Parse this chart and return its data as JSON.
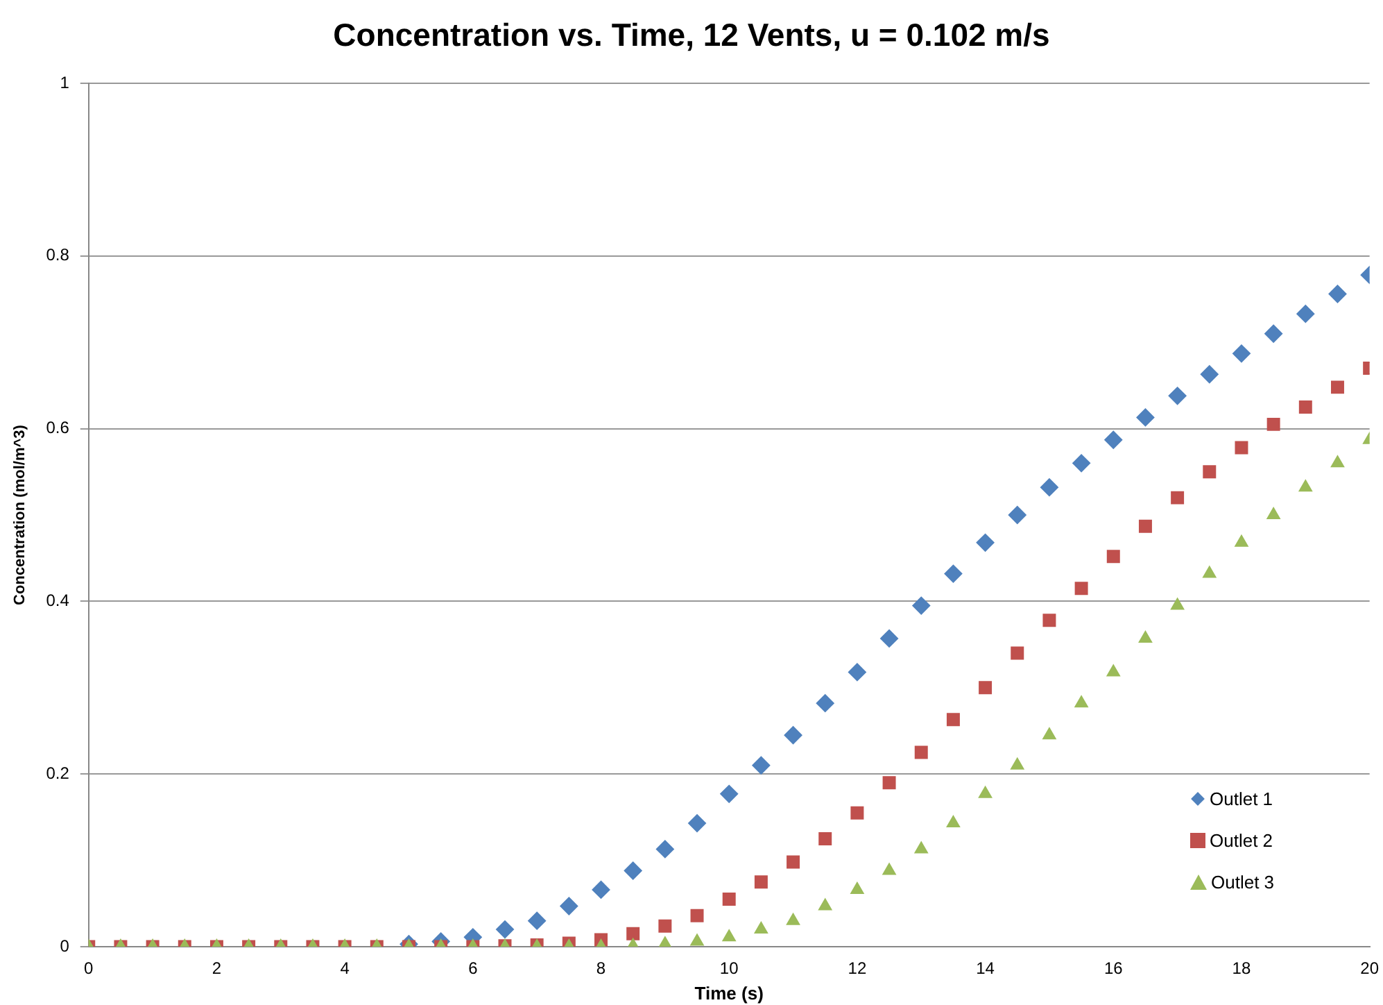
{
  "chart_data": {
    "type": "scatter",
    "title": "Concentration vs. Time, 12 Vents, u = 0.102 m/s",
    "xlabel": "Time (s)",
    "ylabel": "Concentration (mol/m^3)",
    "x": [
      0,
      0.5,
      1,
      1.5,
      2,
      2.5,
      3,
      3.5,
      4,
      4.5,
      5,
      5.5,
      6,
      6.5,
      7,
      7.5,
      8,
      8.5,
      9,
      9.5,
      10,
      10.5,
      11,
      11.5,
      12,
      12.5,
      13,
      13.5,
      14,
      14.5,
      15,
      15.5,
      16,
      16.5,
      17,
      17.5,
      18,
      18.5,
      19,
      19.5,
      20
    ],
    "series": [
      {
        "name": "Outlet 1",
        "color": "#4f81bd",
        "marker": "diamond",
        "values": [
          null,
          null,
          null,
          null,
          null,
          null,
          null,
          null,
          null,
          null,
          0.003,
          0.006,
          0.011,
          0.02,
          0.03,
          0.047,
          0.066,
          0.088,
          0.113,
          0.143,
          0.177,
          0.21,
          0.245,
          0.282,
          0.318,
          0.357,
          0.395,
          0.432,
          0.468,
          0.5,
          0.532,
          0.56,
          0.587,
          0.613,
          0.638,
          0.663,
          0.687,
          0.71,
          0.733,
          0.756,
          0.778
        ]
      },
      {
        "name": "Outlet 2",
        "color": "#c0504d",
        "marker": "square",
        "values": [
          0,
          0,
          0,
          0,
          0,
          0,
          0,
          0,
          0,
          0,
          0,
          0,
          0,
          0.001,
          0.002,
          0.004,
          0.008,
          0.015,
          0.024,
          0.036,
          0.055,
          0.075,
          0.098,
          0.125,
          0.155,
          0.19,
          0.225,
          0.263,
          0.3,
          0.34,
          0.378,
          0.415,
          0.452,
          0.487,
          0.52,
          0.55,
          0.578,
          0.605,
          0.625,
          0.648,
          0.67
        ]
      },
      {
        "name": "Outlet 3",
        "color": "#9bbb59",
        "marker": "triangle",
        "values": [
          0,
          0,
          0,
          0,
          0,
          0,
          0,
          0,
          0,
          0,
          0,
          0,
          0,
          0,
          0,
          0,
          0,
          0.001,
          0.003,
          0.006,
          0.011,
          0.02,
          0.03,
          0.047,
          0.066,
          0.088,
          0.113,
          0.143,
          0.177,
          0.21,
          0.245,
          0.282,
          0.318,
          0.357,
          0.395,
          0.432,
          0.468,
          0.5,
          0.532,
          0.56,
          0.587
        ]
      }
    ],
    "xlim": [
      0,
      20
    ],
    "xticks": [
      0,
      2,
      4,
      6,
      8,
      10,
      12,
      14,
      16,
      18,
      20
    ],
    "ylim": [
      0,
      1
    ],
    "yticks": [
      0,
      0.2,
      0.4,
      0.6,
      0.8,
      1
    ],
    "grid": "y",
    "legend": "bottom right"
  }
}
